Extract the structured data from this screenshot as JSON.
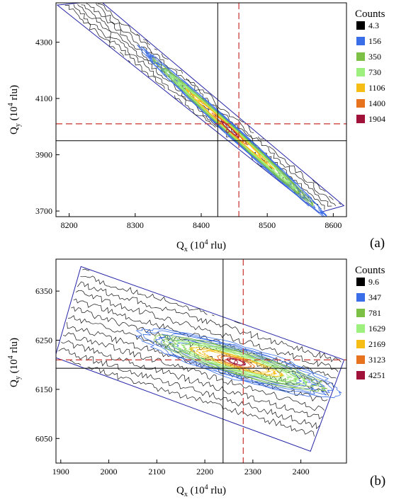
{
  "chart_data": [
    {
      "type": "contour",
      "panel_label": "(a)",
      "xlabel": {
        "main": "Q",
        "sub": "x",
        "rest": " (10",
        "sup": "4",
        "end": " rlu)"
      },
      "ylabel": {
        "main": "Q",
        "sub": "y",
        "rest": " (10",
        "sup": "4",
        "end": " rlu)"
      },
      "xlim": [
        8180,
        8620
      ],
      "ylim": [
        3680,
        4440
      ],
      "xticks": [
        "8200",
        "8300",
        "8400",
        "8500",
        "8600"
      ],
      "yticks": [
        "3700",
        "3900",
        "4100",
        "4300"
      ],
      "scan_region": [
        [
          8182,
          4432
        ],
        [
          8247,
          4447
        ],
        [
          8616,
          3719
        ],
        [
          8578,
          3694
        ]
      ],
      "ridge": [
        [
          8322,
          4250
        ],
        [
          8440,
          3985
        ],
        [
          8580,
          3700
        ]
      ],
      "peak": [
        8440,
        3985
      ],
      "solid_reference_lines": {
        "x": 8425,
        "y": 3950
      },
      "dashed_reference_lines": {
        "x": 8457,
        "y": 4010
      },
      "legend": {
        "title": "Counts",
        "entries": [
          {
            "label": "4.3",
            "color": "#000000"
          },
          {
            "label": "156",
            "color": "#3a6ee8"
          },
          {
            "label": "350",
            "color": "#7cc045"
          },
          {
            "label": "730",
            "color": "#9ef07e"
          },
          {
            "label": "1106",
            "color": "#f6be14"
          },
          {
            "label": "1400",
            "color": "#e8731e"
          },
          {
            "label": "1904",
            "color": "#a0123a"
          }
        ]
      }
    },
    {
      "type": "contour",
      "panel_label": "(b)",
      "xlabel": {
        "main": "Q",
        "sub": "x",
        "rest": " (10",
        "sup": "4",
        "end": " rlu)"
      },
      "ylabel": {
        "main": "Q",
        "sub": "y",
        "rest": " (10",
        "sup": "4",
        "end": " rlu)"
      },
      "xlim": [
        1890,
        2495
      ],
      "ylim": [
        6000,
        6415
      ],
      "xticks": [
        "1900",
        "2000",
        "2100",
        "2200",
        "2300",
        "2400"
      ],
      "yticks": [
        "6050",
        "6150",
        "6250",
        "6350"
      ],
      "scan_region": [
        [
          1942,
          6400
        ],
        [
          2490,
          6210
        ],
        [
          2420,
          6024
        ],
        [
          1888,
          6215
        ]
      ],
      "ridge": [
        [
          2085,
          6258
        ],
        [
          2260,
          6205
        ],
        [
          2460,
          6150
        ]
      ],
      "peak": [
        2265,
        6205
      ],
      "solid_reference_lines": {
        "x": 2238,
        "y": 6193
      },
      "dashed_reference_lines": {
        "x": 2280,
        "y": 6210
      },
      "legend": {
        "title": "Counts",
        "entries": [
          {
            "label": "9.6",
            "color": "#000000"
          },
          {
            "label": "347",
            "color": "#3a6ee8"
          },
          {
            "label": "781",
            "color": "#7cc045"
          },
          {
            "label": "1629",
            "color": "#9ef07e"
          },
          {
            "label": "2169",
            "color": "#f6be14"
          },
          {
            "label": "3123",
            "color": "#e8731e"
          },
          {
            "label": "4251",
            "color": "#a0123a"
          }
        ]
      }
    }
  ]
}
